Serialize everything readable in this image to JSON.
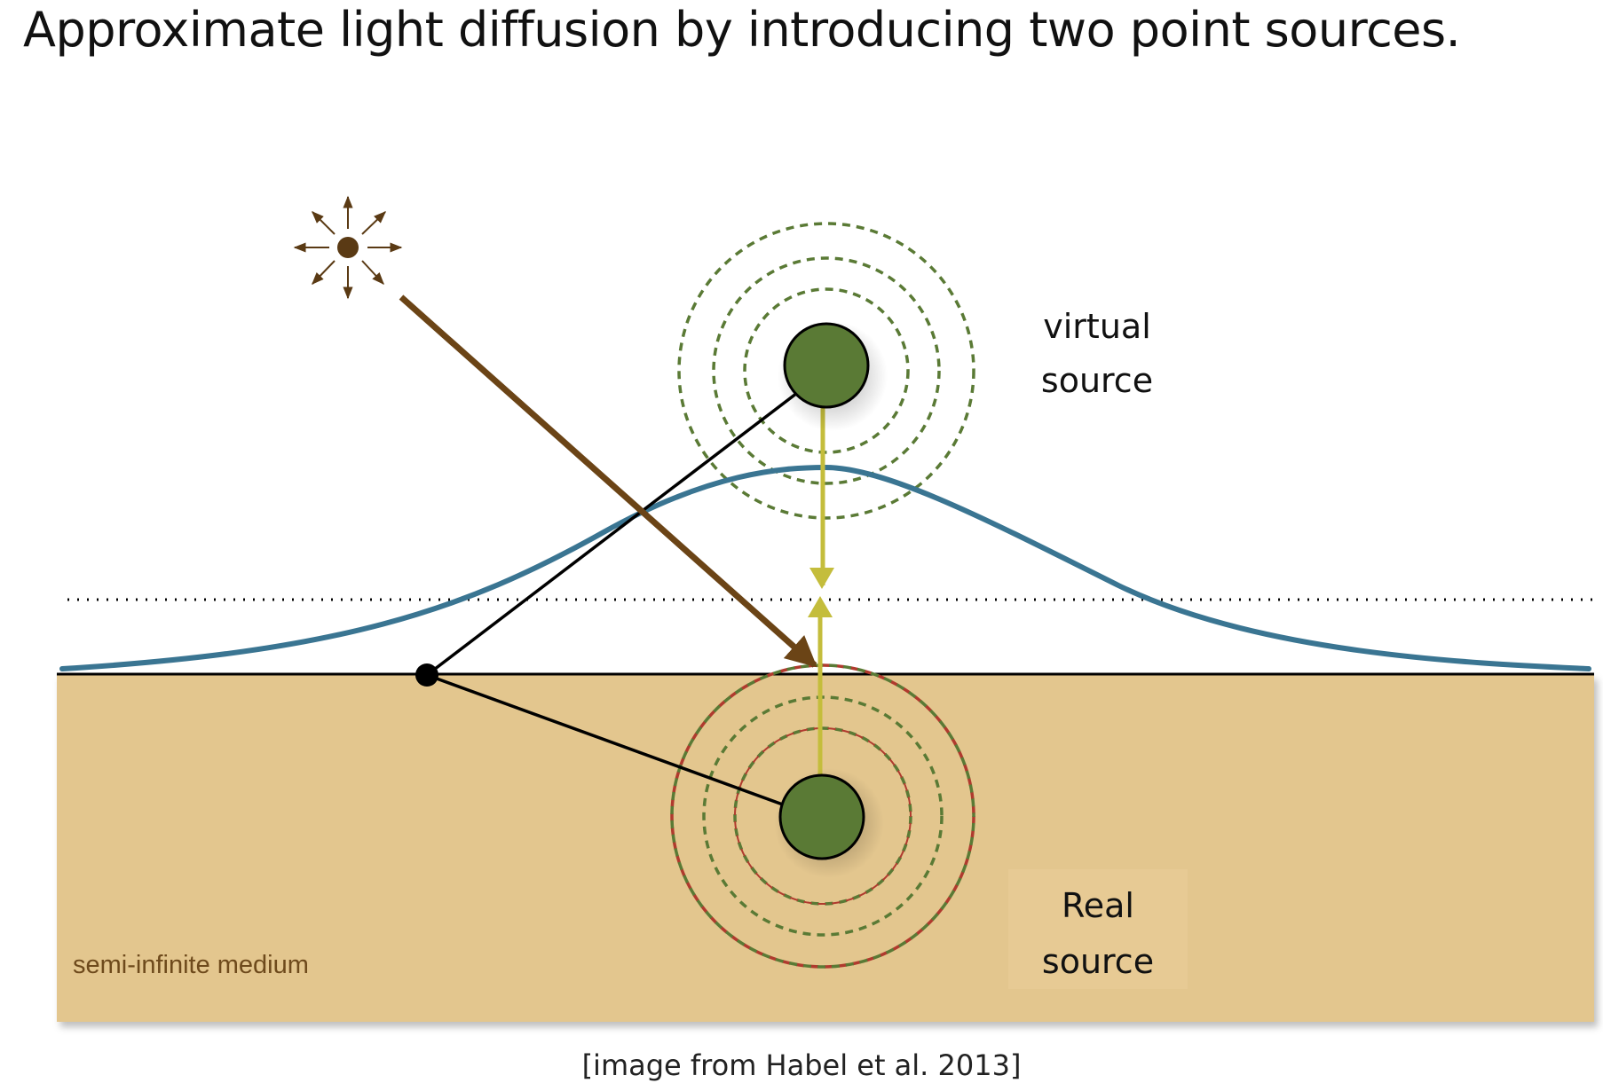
{
  "title": "Approximate light diffusion by introducing two point sources.",
  "labels": {
    "virtual_source": [
      "virtual",
      "source"
    ],
    "real_source": [
      "Real",
      "source"
    ],
    "medium": "semi-infinite medium"
  },
  "credit": "[image from Habel et al. 2013]",
  "colors": {
    "medium_fill": "#e3c68e",
    "source_fill": "#5a7a35",
    "incident_ray": "#6b4416",
    "profile_curve": "#3a7592",
    "dipole_axis": "#c4bd3c",
    "dashed_rings": "#5a7a35",
    "real_rings_accent": "#b03a2e"
  },
  "icons": {
    "light_source": "point-light-icon"
  }
}
